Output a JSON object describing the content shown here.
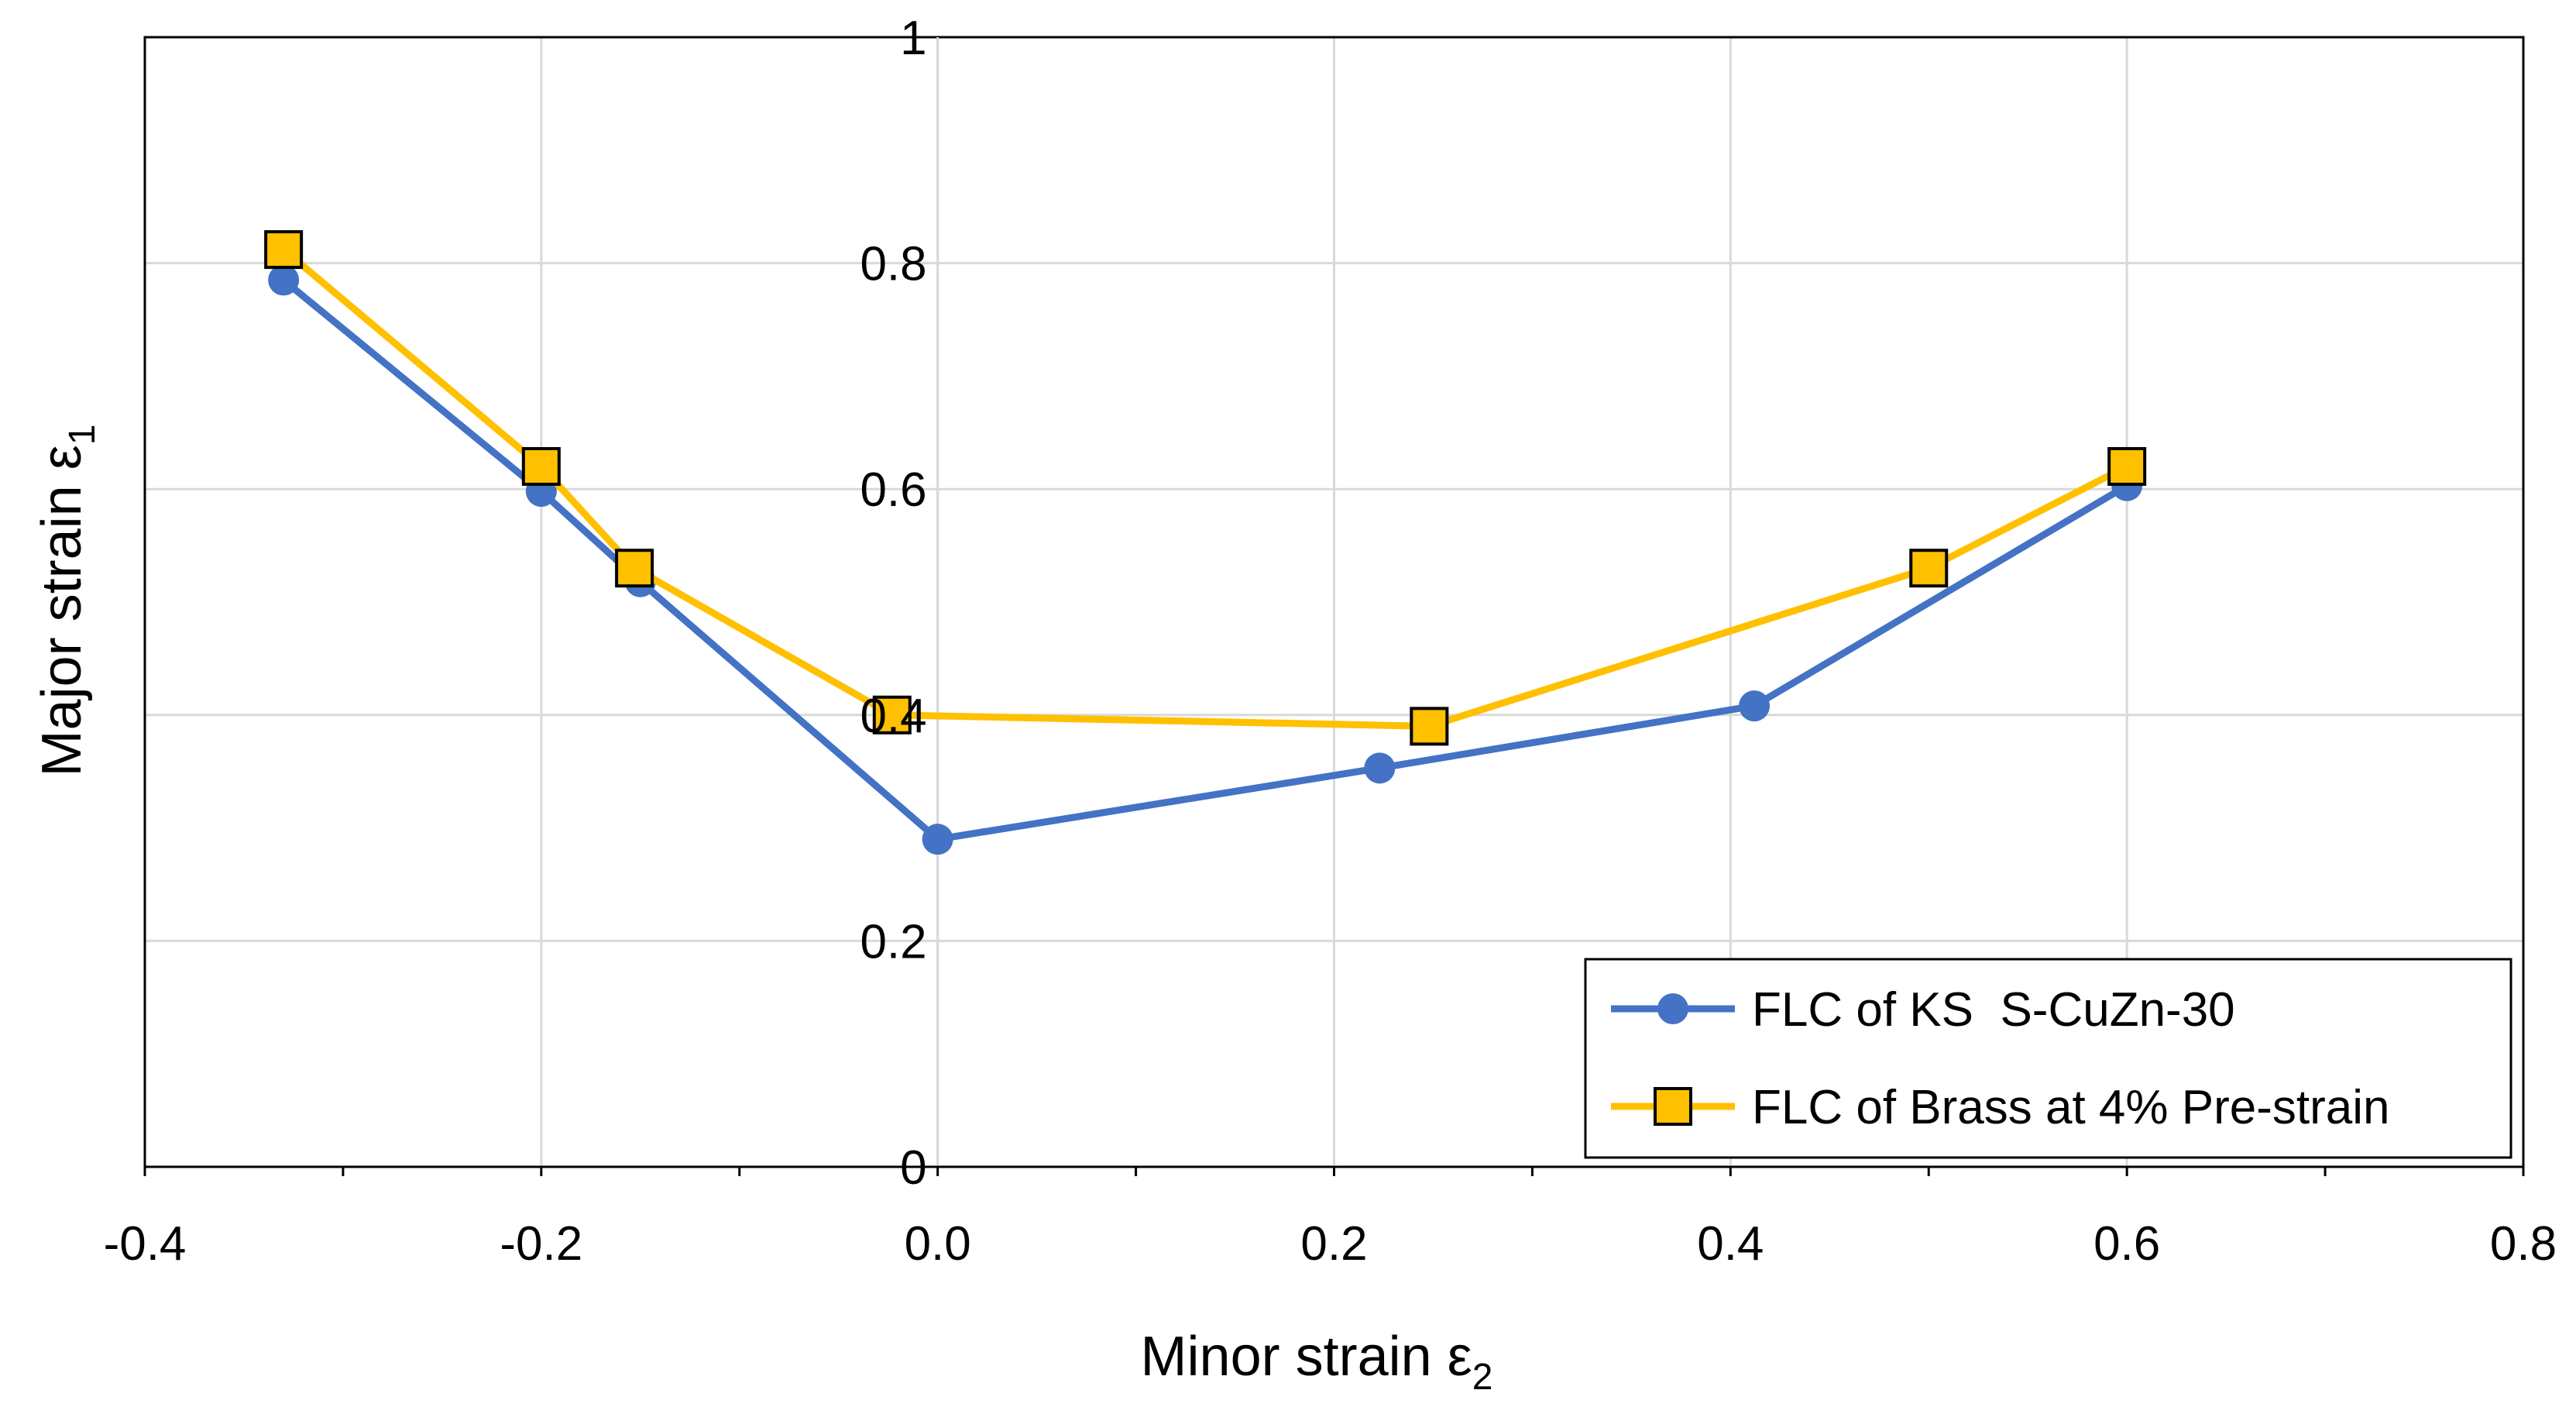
{
  "chart_data": {
    "type": "line",
    "title": "",
    "xlabel": "Minor strain ε",
    "xlabel_subscript": "2",
    "ylabel": "Major strain ε",
    "ylabel_subscript": "1",
    "xlim": [
      -0.4,
      0.8
    ],
    "ylim": [
      0,
      1
    ],
    "xticks": [
      -0.4,
      -0.2,
      0.0,
      0.2,
      0.4,
      0.6,
      0.8
    ],
    "xtick_labels": [
      "-0.4",
      "-0.2",
      "0.0",
      "0.2",
      "0.4",
      "0.6",
      "0.8"
    ],
    "yticks": [
      0,
      0.2,
      0.4,
      0.6,
      0.8,
      1
    ],
    "ytick_labels": [
      "0",
      "0.2",
      "0.4",
      "0.6",
      "0.8",
      "1"
    ],
    "grid": true,
    "legend_position": "bottom-right",
    "series": [
      {
        "name": "FLC of KS  S-CuZn-30",
        "color": "#4472C4",
        "marker": "circle",
        "x": [
          -0.33,
          -0.2,
          -0.15,
          0.0,
          0.223,
          0.412,
          0.6
        ],
        "y": [
          0.785,
          0.598,
          0.518,
          0.29,
          0.353,
          0.408,
          0.603
        ]
      },
      {
        "name": "FLC of Brass at 4% Pre-strain",
        "color": "#FFC000",
        "marker": "square",
        "x": [
          -0.33,
          -0.2,
          -0.153,
          -0.023,
          0.248,
          0.5,
          0.6
        ],
        "y": [
          0.812,
          0.62,
          0.53,
          0.4,
          0.39,
          0.53,
          0.62
        ]
      }
    ]
  }
}
